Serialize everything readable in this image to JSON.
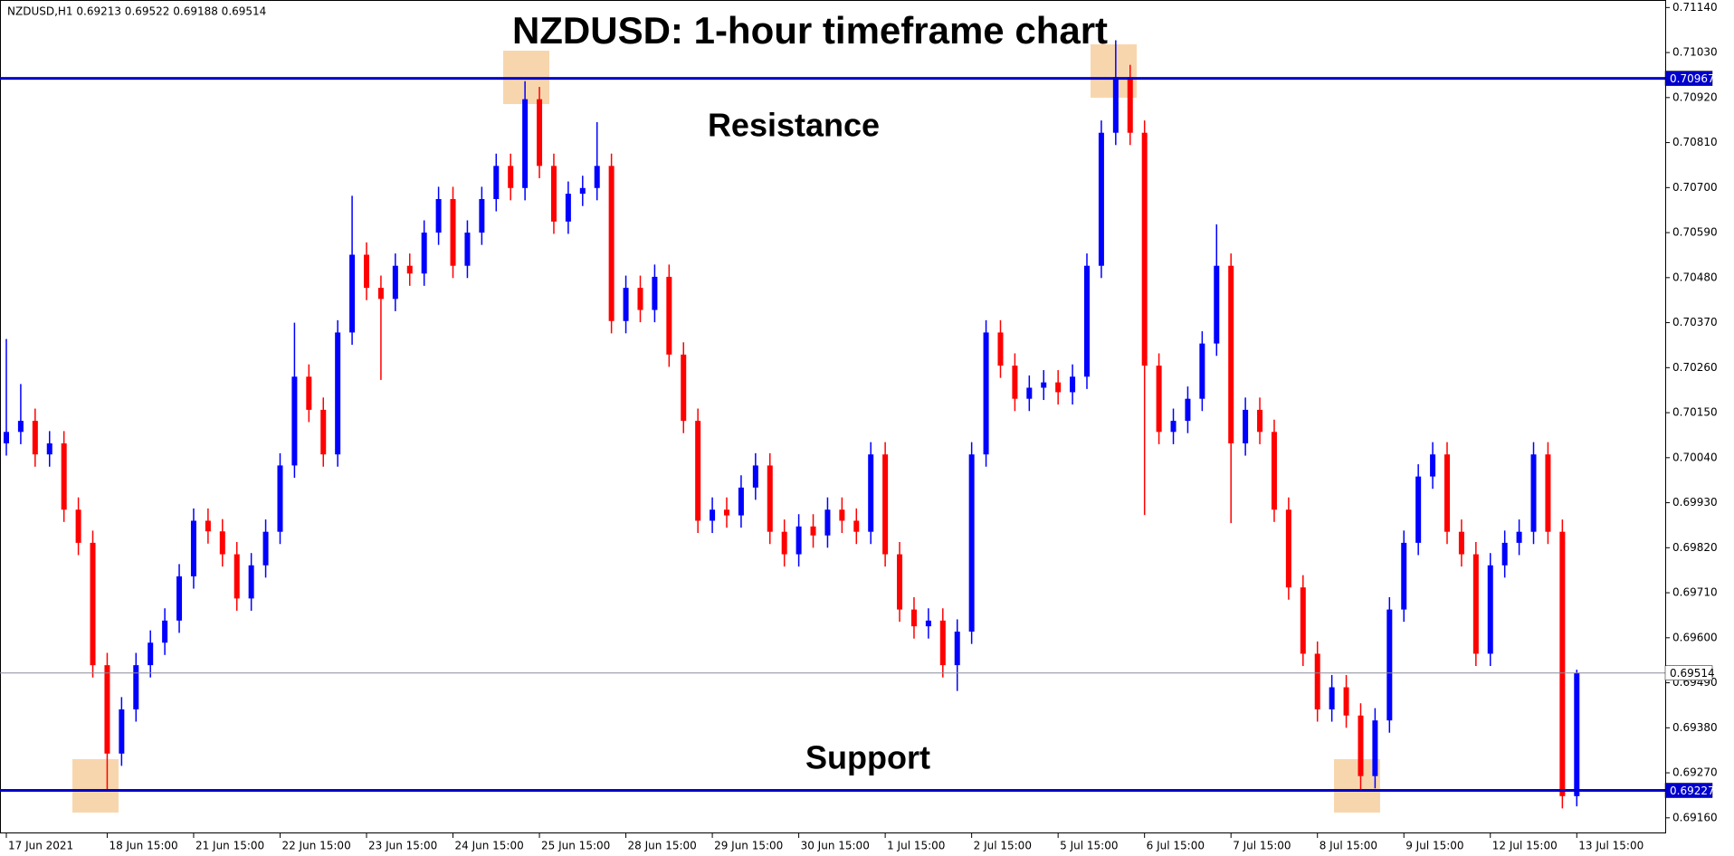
{
  "chart_data": {
    "type": "candlestick",
    "header": "NZDUSD,H1  0.69213 0.69522 0.69188 0.69514",
    "title": "NZDUSD: 1-hour timeframe chart",
    "annotations": [
      "Resistance",
      "Support"
    ],
    "up_color": "#0000ff",
    "down_color": "#ff0000",
    "categories": [
      "17 Jun 2021",
      null,
      null,
      null,
      null,
      null,
      null,
      "18 Jun 15:00",
      null,
      null,
      null,
      null,
      null,
      "21 Jun 15:00",
      null,
      null,
      null,
      null,
      null,
      "22 Jun 15:00",
      null,
      null,
      null,
      null,
      null,
      "23 Jun 15:00",
      null,
      null,
      null,
      null,
      null,
      "24 Jun 15:00",
      null,
      null,
      null,
      null,
      null,
      "25 Jun 15:00",
      null,
      null,
      null,
      null,
      null,
      "28 Jun 15:00",
      null,
      null,
      null,
      null,
      null,
      "29 Jun 15:00",
      null,
      null,
      null,
      null,
      null,
      "30 Jun 15:00",
      null,
      null,
      null,
      null,
      null,
      "1 Jul 15:00",
      null,
      null,
      null,
      null,
      null,
      "2 Jul 15:00",
      null,
      null,
      null,
      null,
      null,
      "5 Jul 15:00",
      null,
      null,
      null,
      null,
      null,
      "6 Jul 15:00",
      null,
      null,
      null,
      null,
      null,
      "7 Jul 15:00",
      null,
      null,
      null,
      null,
      null,
      "8 Jul 15:00",
      null,
      null,
      null,
      null,
      null,
      "9 Jul 15:00",
      null,
      null,
      null,
      null,
      null,
      "12 Jul 15:00",
      null,
      null,
      null,
      null,
      null,
      "13 Jul 15:00"
    ],
    "open": [
      0.70075,
      0.70103,
      0.7013,
      0.70048,
      0.70075,
      0.69913,
      0.69832,
      0.69533,
      0.69317,
      0.69425,
      0.69533,
      0.69588,
      0.69642,
      0.6975,
      0.69886,
      0.6986,
      0.69804,
      0.69696,
      0.69777,
      0.69859,
      0.70021,
      0.70238,
      0.70157,
      0.70048,
      0.70346,
      0.70536,
      0.70455,
      0.70428,
      0.70509,
      0.7049,
      0.7059,
      0.70672,
      0.70509,
      0.7059,
      0.70672,
      0.70753,
      0.70699,
      0.70916,
      0.70753,
      0.70617,
      0.70685,
      0.70699,
      0.70753,
      0.70374,
      0.70455,
      0.70401,
      0.70482,
      0.70292,
      0.7013,
      0.69886,
      0.69913,
      0.69899,
      0.69967,
      0.70021,
      0.69859,
      0.69804,
      0.69872,
      0.6985,
      0.69913,
      0.69886,
      0.69859,
      0.70048,
      0.69804,
      0.69669,
      0.69628,
      0.69642,
      0.69533,
      0.69615,
      0.70048,
      0.70346,
      0.70265,
      0.70184,
      0.70211,
      0.70224,
      0.702,
      0.70238,
      0.70509,
      0.70834,
      0.7097,
      0.70834,
      0.70265,
      0.70103,
      0.7013,
      0.70184,
      0.70319,
      0.70509,
      0.70075,
      0.70157,
      0.70103,
      0.69913,
      0.69723,
      0.69561,
      0.69425,
      0.69479,
      0.6941,
      0.69262,
      0.69398,
      0.69669,
      0.69832,
      0.69994,
      0.70048,
      0.69859,
      0.69804,
      0.69561,
      0.69777,
      0.69832,
      0.69859,
      0.70048,
      0.69859,
      0.69213
    ],
    "high": [
      0.7033,
      0.7022,
      0.7016,
      0.70105,
      0.70105,
      0.69943,
      0.69862,
      0.69563,
      0.69455,
      0.69563,
      0.69618,
      0.69672,
      0.6978,
      0.69916,
      0.69916,
      0.6989,
      0.69834,
      0.69807,
      0.69889,
      0.70051,
      0.7037,
      0.70268,
      0.70187,
      0.70376,
      0.7068,
      0.70566,
      0.70485,
      0.70539,
      0.70539,
      0.7062,
      0.70702,
      0.70702,
      0.7062,
      0.70702,
      0.70783,
      0.70783,
      0.7096,
      0.70946,
      0.70783,
      0.70715,
      0.70729,
      0.7086,
      0.70783,
      0.70485,
      0.70485,
      0.70512,
      0.70512,
      0.70322,
      0.7016,
      0.69943,
      0.69943,
      0.69997,
      0.70051,
      0.70051,
      0.69889,
      0.69902,
      0.69902,
      0.69943,
      0.69943,
      0.69916,
      0.70078,
      0.70078,
      0.69834,
      0.69699,
      0.69672,
      0.69672,
      0.69645,
      0.70078,
      0.70376,
      0.70376,
      0.70295,
      0.70241,
      0.70254,
      0.70254,
      0.70268,
      0.70539,
      0.70864,
      0.7106,
      0.71,
      0.70864,
      0.70295,
      0.7016,
      0.70214,
      0.70349,
      0.7061,
      0.70539,
      0.70187,
      0.70187,
      0.70133,
      0.69943,
      0.69753,
      0.69591,
      0.69509,
      0.69509,
      0.6944,
      0.69428,
      0.69699,
      0.69862,
      0.70024,
      0.70078,
      0.70078,
      0.69889,
      0.69834,
      0.69807,
      0.69862,
      0.69889,
      0.70078,
      0.70078,
      0.69889,
      0.69522
    ],
    "low": [
      0.70045,
      0.70073,
      0.70018,
      0.70018,
      0.69883,
      0.69802,
      0.69503,
      0.6923,
      0.69287,
      0.69395,
      0.69503,
      0.69558,
      0.69612,
      0.6972,
      0.6983,
      0.69774,
      0.69666,
      0.69666,
      0.69747,
      0.69829,
      0.69991,
      0.70127,
      0.70018,
      0.70018,
      0.70316,
      0.70425,
      0.7023,
      0.70398,
      0.7046,
      0.7046,
      0.7056,
      0.70479,
      0.70479,
      0.7056,
      0.70642,
      0.70669,
      0.70669,
      0.70723,
      0.70587,
      0.70587,
      0.70655,
      0.70669,
      0.70344,
      0.70344,
      0.70371,
      0.70371,
      0.70262,
      0.701,
      0.69856,
      0.69856,
      0.69869,
      0.69869,
      0.69937,
      0.69829,
      0.69774,
      0.69774,
      0.6982,
      0.6982,
      0.69856,
      0.69829,
      0.69829,
      0.69774,
      0.69639,
      0.69598,
      0.69598,
      0.69503,
      0.6947,
      0.69585,
      0.70018,
      0.70235,
      0.70154,
      0.70154,
      0.70181,
      0.7017,
      0.7017,
      0.70208,
      0.70479,
      0.70804,
      0.70804,
      0.699,
      0.70073,
      0.70073,
      0.701,
      0.70154,
      0.70289,
      0.6988,
      0.70045,
      0.70073,
      0.69883,
      0.69693,
      0.69531,
      0.69395,
      0.69395,
      0.6938,
      0.6923,
      0.69232,
      0.69368,
      0.69639,
      0.69802,
      0.69964,
      0.69829,
      0.69774,
      0.69531,
      0.69531,
      0.69747,
      0.69802,
      0.69829,
      0.69829,
      0.69183,
      0.69188
    ],
    "close": [
      0.70103,
      0.7013,
      0.70048,
      0.70075,
      0.69913,
      0.69832,
      0.69533,
      0.69317,
      0.69425,
      0.69533,
      0.69588,
      0.69642,
      0.6975,
      0.69886,
      0.6986,
      0.69804,
      0.69696,
      0.69777,
      0.69859,
      0.70021,
      0.70238,
      0.70157,
      0.70048,
      0.70346,
      0.70536,
      0.70455,
      0.70428,
      0.70509,
      0.7049,
      0.7059,
      0.70672,
      0.70509,
      0.7059,
      0.70672,
      0.70753,
      0.70699,
      0.70916,
      0.70753,
      0.70617,
      0.70685,
      0.70699,
      0.70753,
      0.70374,
      0.70455,
      0.70401,
      0.70482,
      0.70292,
      0.7013,
      0.69886,
      0.69913,
      0.69899,
      0.69967,
      0.70021,
      0.69859,
      0.69804,
      0.69872,
      0.6985,
      0.69913,
      0.69886,
      0.69859,
      0.70048,
      0.69804,
      0.69669,
      0.69628,
      0.69642,
      0.69533,
      0.69615,
      0.70048,
      0.70346,
      0.70265,
      0.70184,
      0.70211,
      0.70224,
      0.702,
      0.70238,
      0.70509,
      0.70834,
      0.7097,
      0.70834,
      0.70265,
      0.70103,
      0.7013,
      0.70184,
      0.70319,
      0.70509,
      0.70075,
      0.70157,
      0.70103,
      0.69913,
      0.69723,
      0.69561,
      0.69425,
      0.69479,
      0.6941,
      0.69262,
      0.69398,
      0.69669,
      0.69832,
      0.69994,
      0.70048,
      0.69859,
      0.69804,
      0.69561,
      0.69777,
      0.69832,
      0.69859,
      0.70048,
      0.69859,
      0.69213,
      0.69514
    ],
    "ylim": [
      0.69122,
      0.71154
    ],
    "yticks": [
      {
        "value": 0.7114,
        "label": "0.71140"
      },
      {
        "value": 0.7103,
        "label": "0.71030"
      },
      {
        "value": 0.7092,
        "label": "0.70920"
      },
      {
        "value": 0.7081,
        "label": "0.70810"
      },
      {
        "value": 0.707,
        "label": "0.70700"
      },
      {
        "value": 0.7059,
        "label": "0.70590"
      },
      {
        "value": 0.7048,
        "label": "0.70480"
      },
      {
        "value": 0.7037,
        "label": "0.70370"
      },
      {
        "value": 0.7026,
        "label": "0.70260"
      },
      {
        "value": 0.7015,
        "label": "0.70150"
      },
      {
        "value": 0.7004,
        "label": "0.70040"
      },
      {
        "value": 0.6993,
        "label": "0.69930"
      },
      {
        "value": 0.6982,
        "label": "0.69820"
      },
      {
        "value": 0.6971,
        "label": "0.69710"
      },
      {
        "value": 0.696,
        "label": "0.69600"
      },
      {
        "value": 0.6949,
        "label": "0.69490"
      },
      {
        "value": 0.6938,
        "label": "0.69380"
      },
      {
        "value": 0.6927,
        "label": "0.69270"
      },
      {
        "value": 0.6916,
        "label": "0.69160"
      }
    ],
    "levels": [
      {
        "value": 0.70967,
        "color": "#0000cc"
      },
      {
        "value": 0.69227,
        "color": "#0000cc"
      }
    ],
    "current_price": 0.69514
  }
}
